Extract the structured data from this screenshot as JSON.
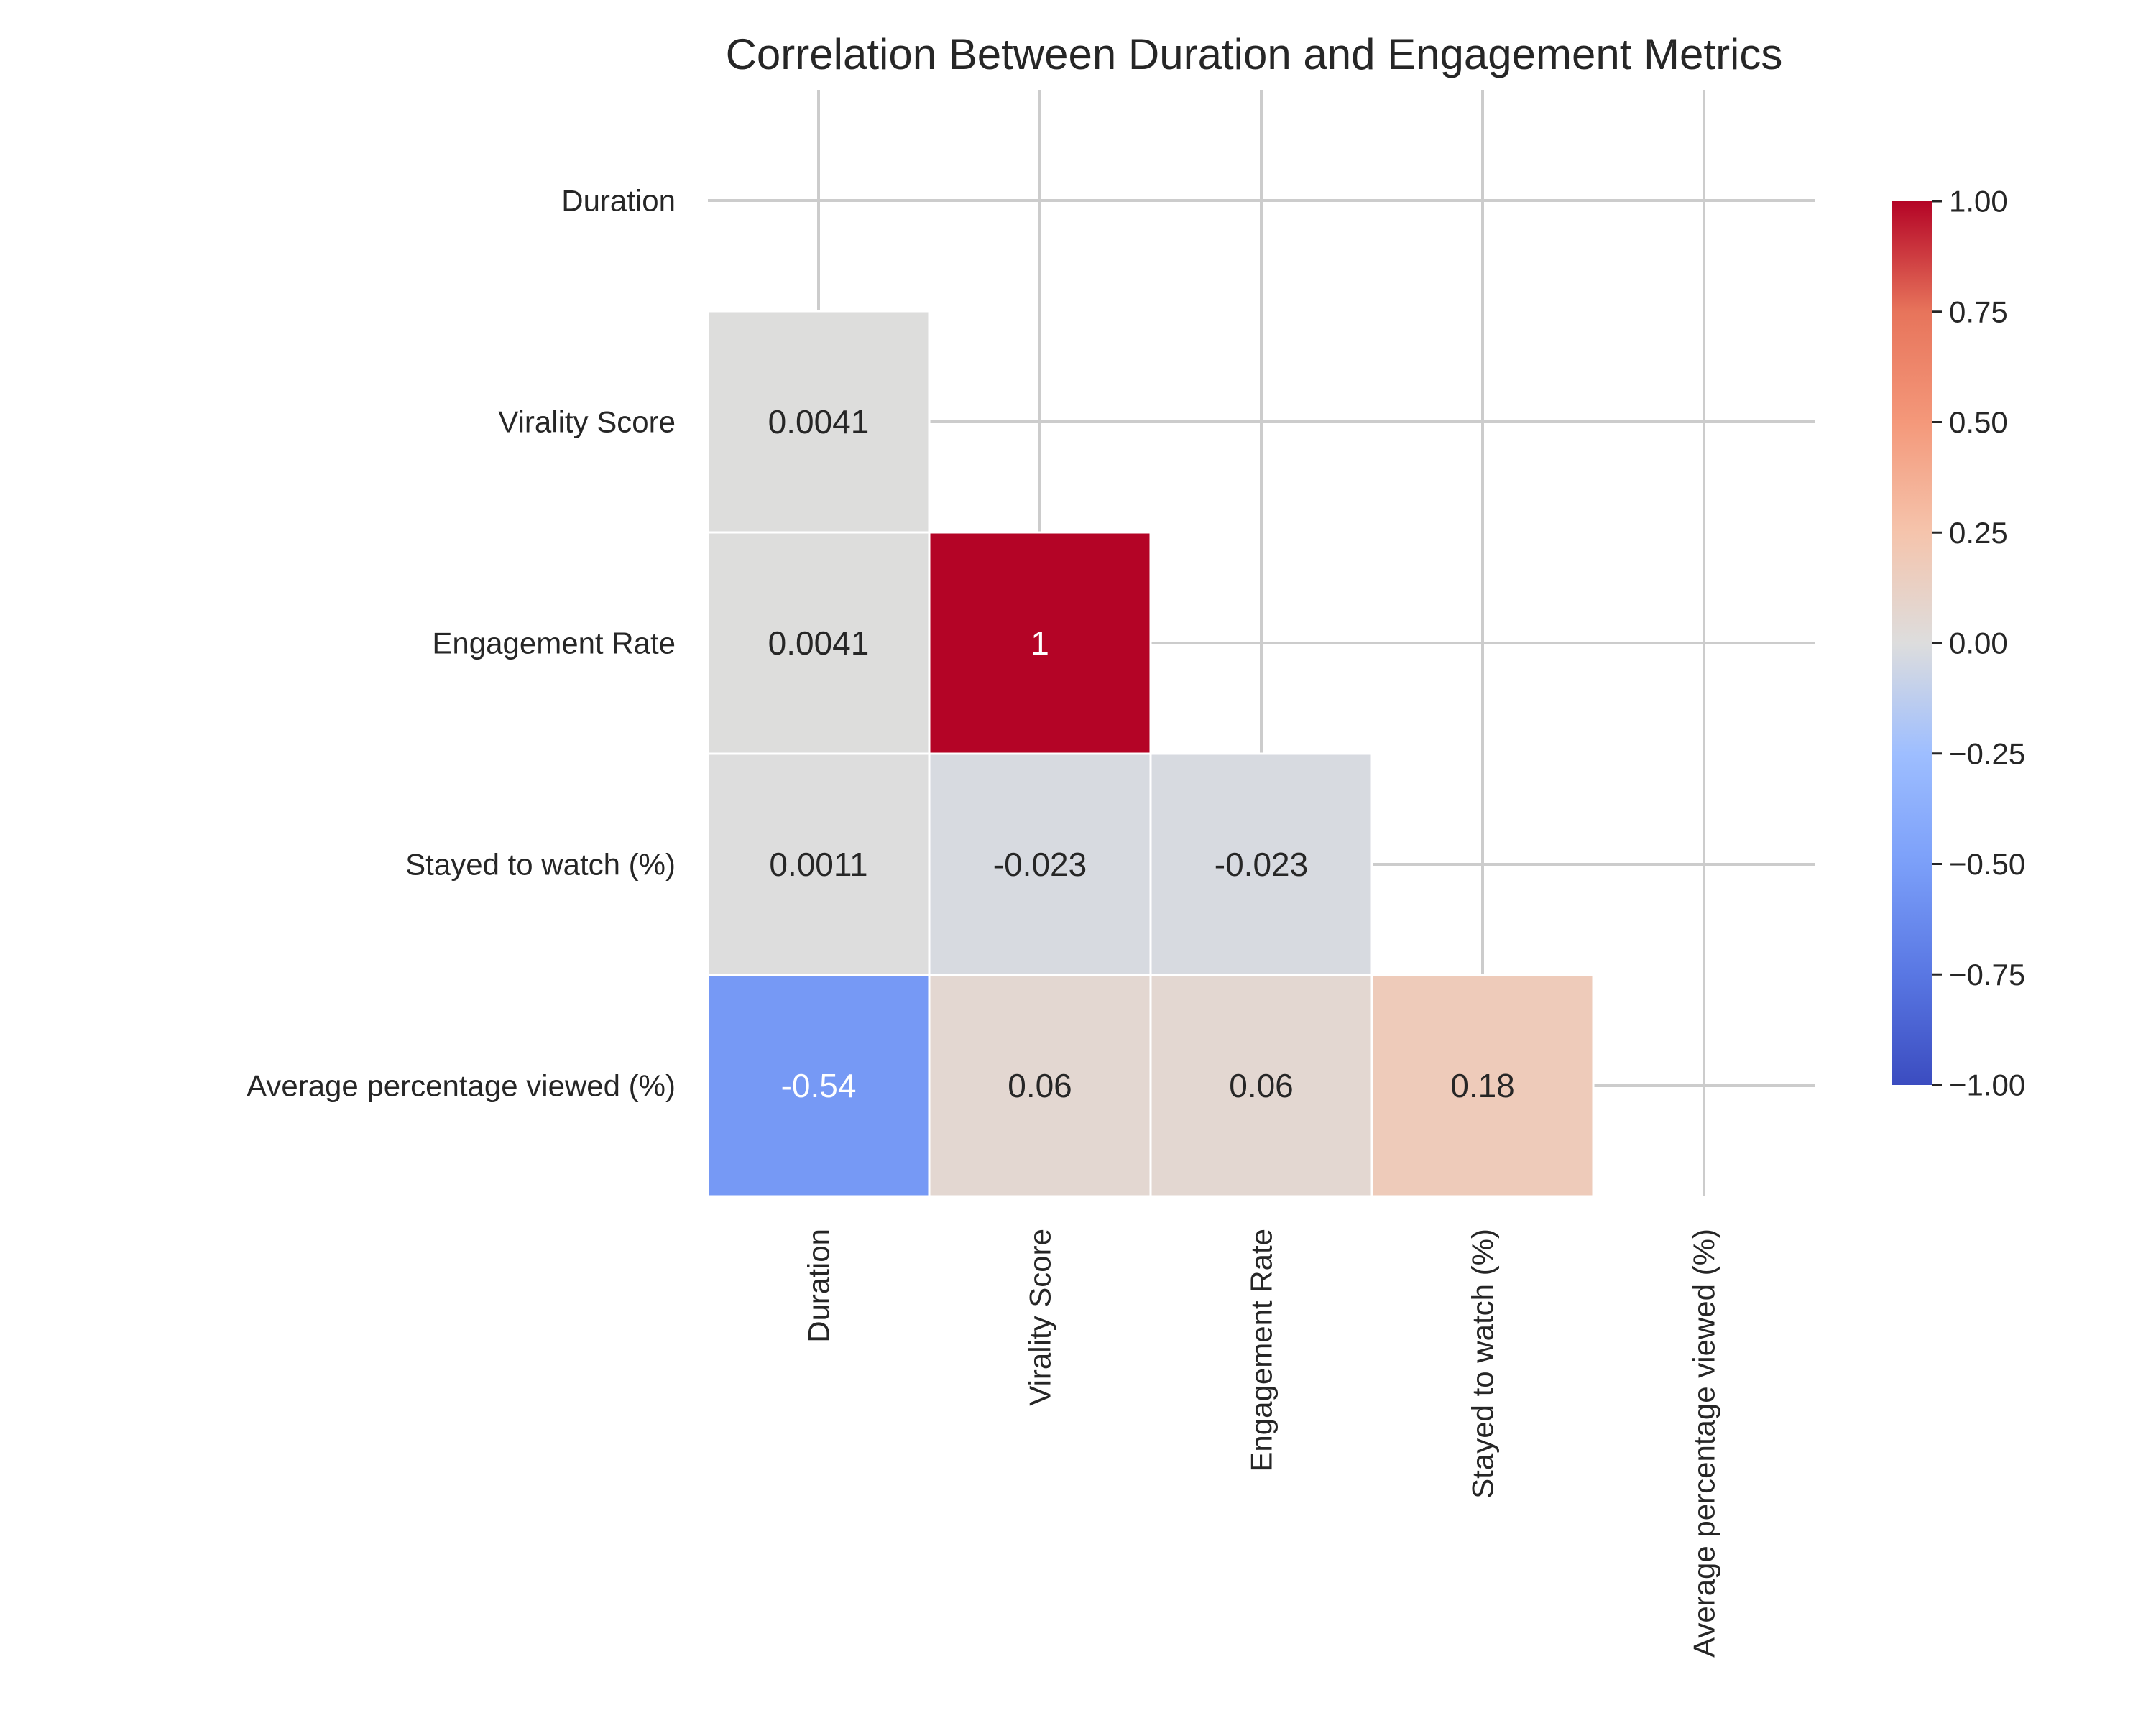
{
  "chart_data": {
    "type": "heatmap",
    "title": "Correlation Between Duration and Engagement Metrics",
    "xlabel": "",
    "ylabel": "",
    "row_labels": [
      "Duration",
      "Virality Score",
      "Engagement Rate",
      "Stayed to watch (%)",
      "Average percentage viewed (%)"
    ],
    "col_labels": [
      "Duration",
      "Virality Score",
      "Engagement Rate",
      "Stayed to watch (%)",
      "Average percentage viewed (%)"
    ],
    "cells": [
      {
        "row": 1,
        "col": 0,
        "value": 0.0041,
        "label": "0.0041"
      },
      {
        "row": 2,
        "col": 0,
        "value": 0.0041,
        "label": "0.0041"
      },
      {
        "row": 2,
        "col": 1,
        "value": 1.0,
        "label": "1"
      },
      {
        "row": 3,
        "col": 0,
        "value": 0.0011,
        "label": "0.0011"
      },
      {
        "row": 3,
        "col": 1,
        "value": -0.023,
        "label": "-0.023"
      },
      {
        "row": 3,
        "col": 2,
        "value": -0.023,
        "label": "-0.023"
      },
      {
        "row": 4,
        "col": 0,
        "value": -0.54,
        "label": "-0.54"
      },
      {
        "row": 4,
        "col": 1,
        "value": 0.06,
        "label": "0.06"
      },
      {
        "row": 4,
        "col": 2,
        "value": 0.06,
        "label": "0.06"
      },
      {
        "row": 4,
        "col": 3,
        "value": 0.18,
        "label": "0.18"
      }
    ],
    "mask": "upper triangle incl. diagonal",
    "colormap": "coolwarm",
    "colorbar": {
      "vmin": -1.0,
      "vmax": 1.0,
      "ticks": [
        1.0,
        0.75,
        0.5,
        0.25,
        0.0,
        -0.25,
        -0.5,
        -0.75,
        -1.0
      ],
      "tick_labels": [
        "1.00",
        "0.75",
        "0.50",
        "0.25",
        "0.00",
        "−0.25",
        "−0.50",
        "−0.75",
        "−1.00"
      ],
      "placement": "right"
    },
    "grid": true,
    "colors": {
      "background": "#ffffff",
      "grid": "#cccccc",
      "cell_border": "#ffffff",
      "text_dark": "#262626",
      "text_light": "#ffffff"
    }
  }
}
